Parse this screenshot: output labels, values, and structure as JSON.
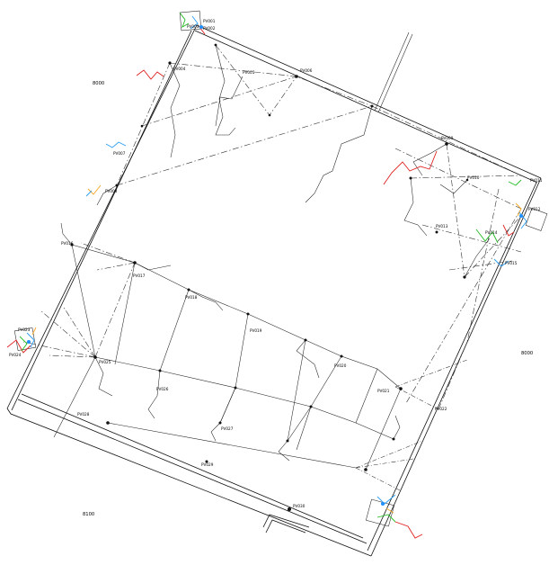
{
  "drawing": {
    "elevations": [
      {
        "id": "elev-top-left",
        "text": "8000"
      },
      {
        "id": "elev-right",
        "text": "8000"
      },
      {
        "id": "elev-bottom-left",
        "text": "8100"
      }
    ],
    "labels": {
      "pv001": "PV001",
      "pv002": "PV002",
      "pv003": "PV003",
      "pv004": "PV004",
      "pv005": "PV005",
      "pv006": "PV006",
      "pv007": "PV007",
      "pv008": "PV008",
      "pv009": "PV009",
      "pv010": "PV010",
      "pv011": "PV011",
      "pv012": "PV012",
      "pv013": "PV013",
      "pv014": "PV014",
      "pv015": "PV015",
      "pv016": "PV016",
      "pv017": "PV017",
      "pv018": "PV018",
      "pv019": "PV019",
      "pv020": "PV020",
      "pv021": "PV021",
      "pv022": "PV022",
      "pv023": "PV023",
      "pv024": "PV024",
      "pv025": "PV025",
      "pv026": "PV026",
      "pv027": "PV027",
      "pv028": "PV028",
      "pv029": "PV029",
      "pv030": "PV030"
    },
    "colors": {
      "line": "#111111",
      "red": "#e02020",
      "green": "#22bb22",
      "blue": "#2a9df4",
      "orange": "#f5a623",
      "node_blue": "#1e90ff"
    }
  }
}
